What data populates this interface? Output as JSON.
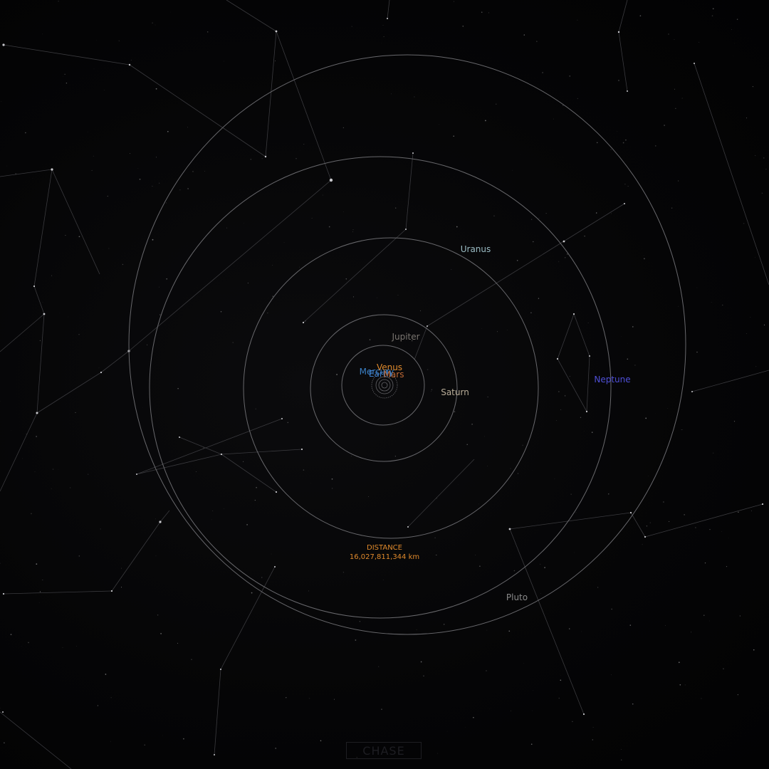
{
  "planets": {
    "mercury": {
      "label": "Mercury",
      "color": "#3a7fc4"
    },
    "venus": {
      "label": "Venus",
      "color": "#e08a2c"
    },
    "earth": {
      "label": "Earth",
      "color": "#3d7dc8"
    },
    "mars": {
      "label": "Mars",
      "color": "#c06a35"
    },
    "jupiter": {
      "label": "Jupiter",
      "color": "#7a7570"
    },
    "saturn": {
      "label": "Saturn",
      "color": "#b9ad98"
    },
    "uranus": {
      "label": "Uranus",
      "color": "#9bbcc4"
    },
    "neptune": {
      "label": "Neptune",
      "color": "#4e4fd6"
    },
    "pluto": {
      "label": "Pluto",
      "color": "#8a8a8a"
    }
  },
  "distance": {
    "title": "DISTANCE",
    "value": "16,027,811,344 km",
    "color": "#e08a2c"
  },
  "controls": {
    "chase_label": "CHASE"
  },
  "colors": {
    "background": "#030304",
    "orbit": "#6e6e72",
    "constellation": "#3a3a3e"
  }
}
